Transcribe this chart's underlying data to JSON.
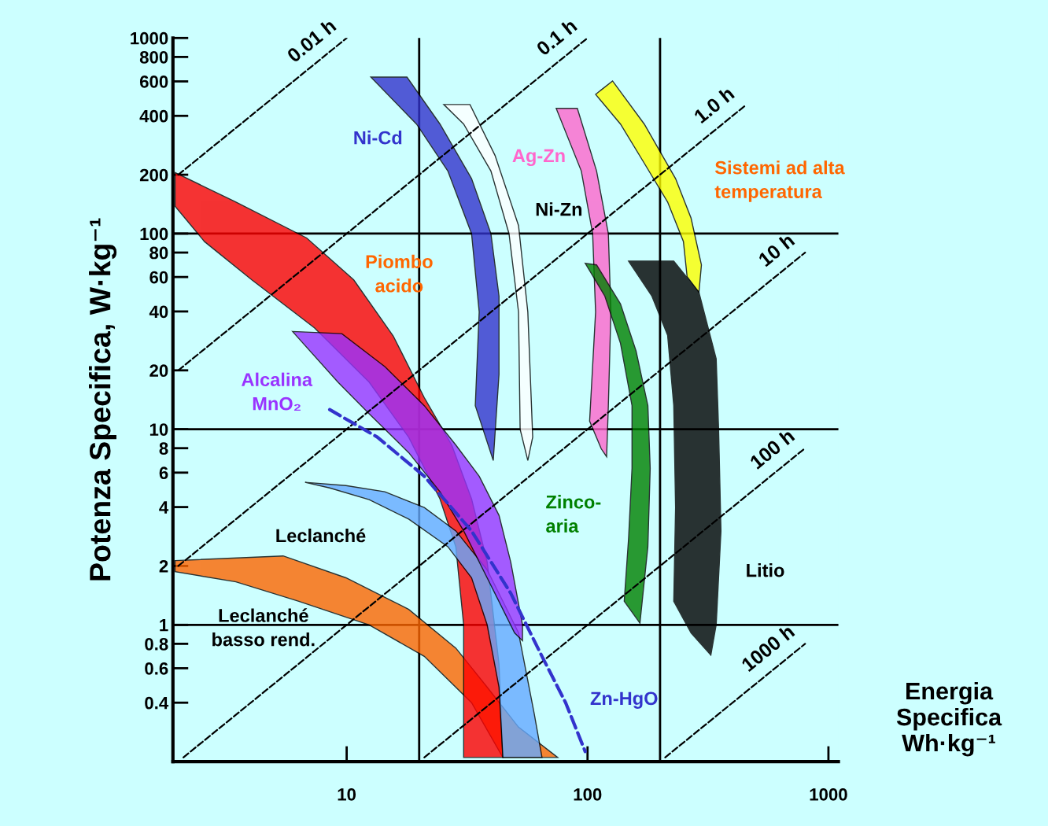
{
  "chart_data": {
    "type": "area",
    "ylabel": "Potenza Specifica, W·kg⁻¹",
    "xlabel": "Energia\nSpecifica\nWh·kg⁻¹",
    "log": "xy",
    "xlim": [
      1.9,
      1100
    ],
    "ylim": [
      0.2,
      1000
    ],
    "xticks": [
      10,
      100,
      1000
    ],
    "annotations": [
      "Leclanché\nbasso rend.",
      "Piombo\nacido",
      "Leclanché",
      "Ni-Zn",
      "Sistemi ad alta\ntemperatura"
    ],
    "yticks": [
      0.4,
      0.6,
      0.8,
      1,
      2,
      4,
      6,
      8,
      10,
      20,
      40,
      60,
      80,
      100,
      200,
      400,
      600,
      800,
      1000
    ],
    "grid": false,
    "legend": false,
    "ref_lines": [
      {
        "axis": "y",
        "value": 100,
        "color": "#000000"
      },
      {
        "axis": "y",
        "value": 10,
        "color": "#000000"
      },
      {
        "axis": "y",
        "value": 1,
        "color": "#000000"
      },
      {
        "axis": "x",
        "value": 20,
        "color": "#000000"
      },
      {
        "axis": "x",
        "value": 200,
        "color": "#000000"
      }
    ],
    "series": [
      {
        "color": "#ff6600",
        "x": [
          1.94,
          5.45,
          9.93,
          18.1,
          28.4,
          38.3,
          51.7,
          75.2,
          44.5,
          33,
          21,
          12.4,
          6.33,
          3.47,
          1.94
        ],
        "values": [
          2.13,
          2.25,
          1.74,
          1.2,
          0.76,
          0.48,
          0.3,
          0.21,
          0.21,
          0.4,
          0.69,
          1,
          1.32,
          1.66,
          1.87
        ]
      },
      {
        "color": "#ff0000",
        "x": [
          1.94,
          3.47,
          6.82,
          10.7,
          15.6,
          21,
          27.3,
          33,
          38.3,
          42.9,
          44.5,
          30.6,
          30.6,
          28.4,
          24.4,
          18.1,
          12.4,
          7.35,
          4.04,
          2.57,
          1.94
        ],
        "values": [
          205,
          145,
          95,
          58,
          30,
          14.5,
          8.3,
          4.4,
          2.1,
          0.63,
          0.21,
          0.21,
          1,
          2.5,
          4.4,
          9.1,
          17.4,
          33,
          58,
          91,
          138
        ]
      },
      {
        "color": "#66aaff",
        "x": [
          6.72,
          9.93,
          14.4,
          21,
          28.4,
          38.3,
          44.5,
          51.7,
          60.1,
          64.7,
          44.5,
          42.9,
          38.3,
          33,
          26.3,
          18.1,
          12.4,
          8.5
        ],
        "values": [
          5.35,
          5.15,
          4.79,
          3.98,
          3.02,
          1.91,
          1.32,
          0.91,
          0.35,
          0.21,
          0.21,
          0.48,
          1,
          1.74,
          2.51,
          3.47,
          4.37,
          5.01
        ]
      },
      {
        "name": "Alcalina\nMnO₂",
        "color": "#9933ff",
        "x": [
          5.96,
          9.55,
          14.4,
          21,
          28.4,
          35.5,
          42.9,
          48,
          53.7,
          53.7,
          49.8,
          38.3,
          30.6,
          24.4,
          18.1,
          12.4,
          9.2
        ],
        "values": [
          31.6,
          30.8,
          20.9,
          13.2,
          8.3,
          5.75,
          3.63,
          2.09,
          1,
          0.83,
          0.91,
          1.74,
          3.02,
          4.79,
          7.59,
          12,
          17.4
        ]
      },
      {
        "name": "Ni-Cd",
        "color": "#3333cc",
        "x": [
          12.6,
          17.8,
          24.4,
          33,
          39.7,
          42.9,
          42.9,
          40.6,
          34.2,
          35.5,
          33,
          26.3,
          19.5
        ],
        "values": [
          631,
          631,
          363,
          191,
          100,
          47.9,
          19.1,
          6.92,
          13.2,
          39.8,
          100,
          209,
          363
        ]
      },
      {
        "color": "#ffffff",
        "x": [
          25.3,
          32.5,
          41.3,
          51.7,
          56.5,
          59.2,
          56.5,
          52.5,
          51.7,
          47.2,
          39.7,
          30.6
        ],
        "values": [
          457,
          457,
          251,
          110,
          39.8,
          9.12,
          6.92,
          10,
          39.8,
          100,
          209,
          363
        ]
      },
      {
        "name": "Ag-Zn",
        "color": "#ff66cc",
        "x": [
          74.1,
          90.7,
          109,
          122,
          125,
          122,
          120,
          114,
          102,
          108,
          105,
          94.2
        ],
        "values": [
          437,
          437,
          209,
          100,
          39.8,
          13.2,
          7.24,
          7.94,
          11,
          39.8,
          100,
          209
        ]
      },
      {
        "color": "#ffff00",
        "x": [
          108,
          127,
          172,
          232,
          269,
          297,
          290,
          259,
          250,
          215,
          172,
          137
        ],
        "values": [
          515,
          603,
          363,
          191,
          120,
          69.2,
          50.1,
          60.3,
          91.2,
          145,
          229,
          363
        ]
      },
      {
        "name": "Zinco-\naria",
        "color": "#008000",
        "x": [
          97.8,
          109,
          137,
          159,
          178,
          182,
          178,
          165,
          142,
          148,
          153,
          153,
          137,
          118
        ],
        "values": [
          70.5,
          69.2,
          43.7,
          25.1,
          13.2,
          6.31,
          2.51,
          1.02,
          1.32,
          2.75,
          6.31,
          13.2,
          27.5,
          47.9
        ]
      },
      {
        "name": "Litio",
        "color": "#000000",
        "x": [
          148,
          228,
          290,
          342,
          350,
          358,
          342,
          325,
          269,
          228,
          232,
          228,
          215,
          185
        ],
        "values": [
          72.4,
          72.4,
          50.1,
          22.9,
          10,
          3.02,
          1,
          0.7,
          0.91,
          1.32,
          3.98,
          13.2,
          30.2,
          47.9
        ]
      },
      {
        "type": "line",
        "name": "Zn-HgO",
        "line_style": "dashed",
        "color": "#3333cc",
        "x": [
          8.5,
          13.4,
          21,
          33,
          48,
          64.7,
          81.1,
          97.8
        ],
        "values": [
          12.6,
          9.12,
          5.75,
          3.02,
          1.45,
          0.69,
          0.4,
          0.225
        ]
      },
      {
        "type": "line",
        "line_style": "dashed",
        "color": "#000000",
        "name": "0.01 h",
        "x": [
          2,
          10
        ],
        "values": [
          200,
          1000
        ]
      },
      {
        "type": "line",
        "line_style": "dashed",
        "color": "#000000",
        "name": "0.1 h",
        "x": [
          2,
          100
        ],
        "values": [
          20,
          1000
        ]
      },
      {
        "type": "line",
        "line_style": "dashed",
        "color": "#000000",
        "name": "1.0 h",
        "x": [
          2,
          450
        ],
        "values": [
          2,
          450
        ]
      },
      {
        "type": "line",
        "line_style": "dashed",
        "color": "#000000",
        "name": "10 h",
        "x": [
          2.1,
          800
        ],
        "values": [
          0.21,
          80
        ]
      },
      {
        "type": "line",
        "line_style": "dashed",
        "color": "#000000",
        "name": "100 h",
        "x": [
          21,
          800
        ],
        "values": [
          0.21,
          8
        ]
      },
      {
        "type": "line",
        "line_style": "dashed",
        "color": "#000000",
        "name": "1000 h",
        "x": [
          210,
          800
        ],
        "values": [
          0.21,
          0.8
        ]
      }
    ]
  }
}
